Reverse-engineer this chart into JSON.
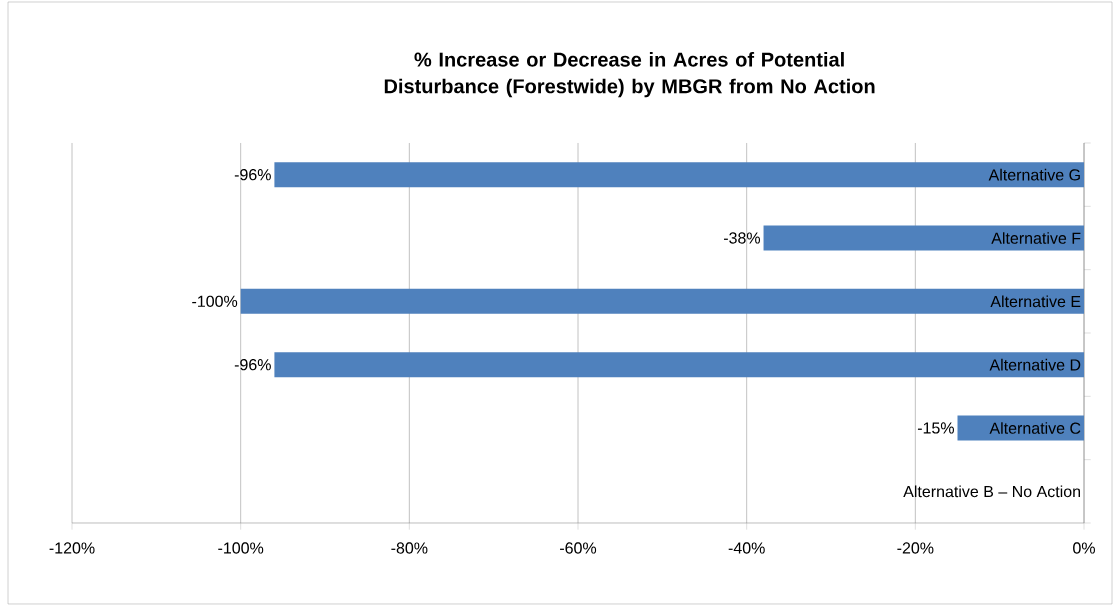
{
  "chart_data": {
    "type": "bar",
    "orientation": "horizontal",
    "title": "% Increase or Decrease in Acres of Potential Disturbance (Forestwide) by MBGR from No Action",
    "categories": [
      "Alternative G",
      "Alternative F",
      "Alternative E",
      "Alternative D",
      "Alternative C",
      "Alternative B – No Action"
    ],
    "values": [
      -96,
      -38,
      -100,
      -96,
      -15,
      0
    ],
    "value_labels": [
      "-96%",
      "-38%",
      "-100%",
      "-96%",
      "-15%",
      null
    ],
    "color": "#4f81bd",
    "xlim": [
      -120,
      0
    ],
    "xticks": [
      {
        "value": -120,
        "label": "-120%"
      },
      {
        "value": -100,
        "label": "-100%"
      },
      {
        "value": -80,
        "label": "-80%"
      },
      {
        "value": -60,
        "label": "-60%"
      },
      {
        "value": -40,
        "label": "-40%"
      },
      {
        "value": -20,
        "label": "-20%"
      },
      {
        "value": 0,
        "label": "0%"
      }
    ],
    "grid": "x"
  }
}
